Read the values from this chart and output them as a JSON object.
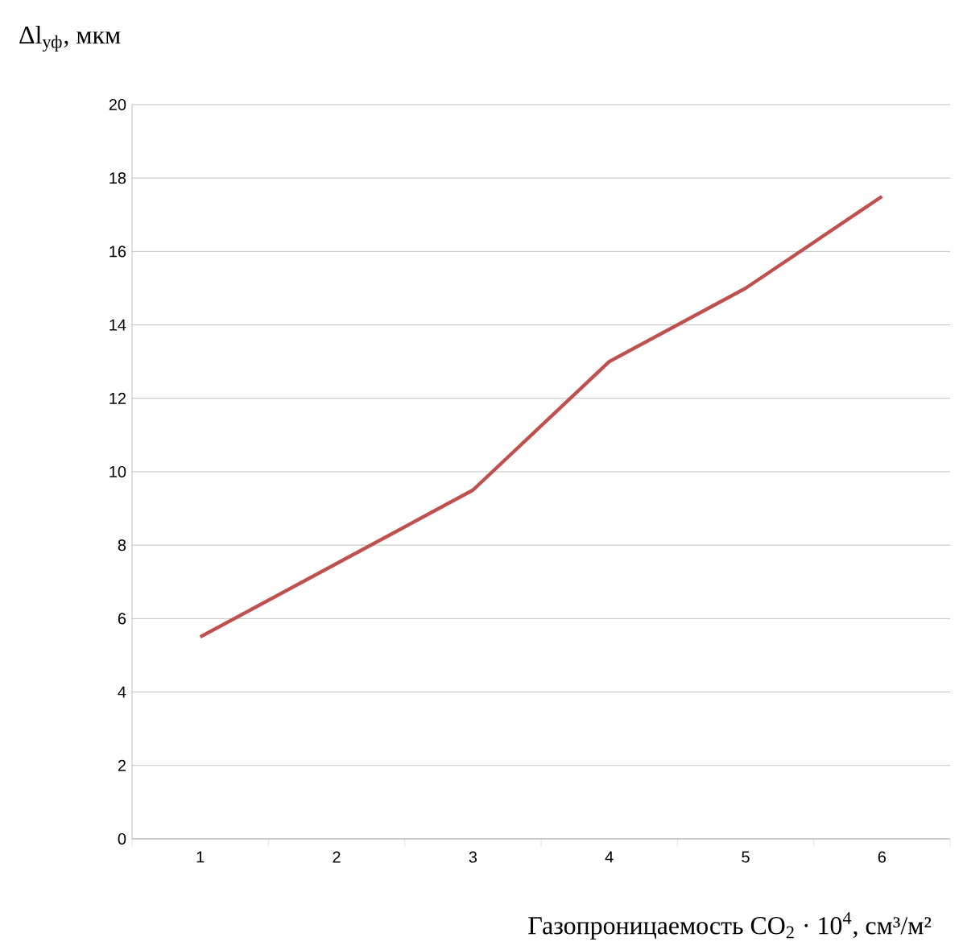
{
  "chart_data": {
    "type": "line",
    "ylabel": "Δl$_{уф}$, мкм",
    "xlabel": "Газопроницаемость CO$_{2}$ · 10$^{4}$, см³/м²",
    "categories": [
      "1",
      "2",
      "3",
      "4",
      "5",
      "6"
    ],
    "values": [
      5.5,
      7.5,
      9.5,
      13,
      15,
      17.5
    ],
    "color": "#c0504d",
    "ylim": [
      0,
      20
    ],
    "yticks": [
      0,
      2,
      4,
      6,
      8,
      10,
      12,
      14,
      16,
      18,
      20
    ],
    "grid": "y",
    "marker": "none",
    "line_style": "solid"
  }
}
